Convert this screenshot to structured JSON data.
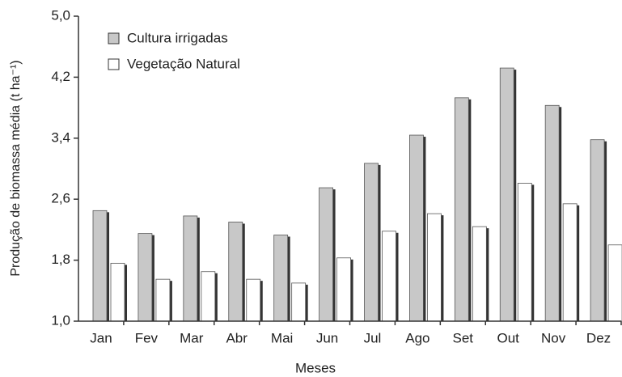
{
  "chart_data": {
    "type": "bar",
    "ylabel": "Produção de biomassa média (t ha⁻¹)",
    "xlabel": "Meses",
    "categories": [
      "Jan",
      "Fev",
      "Mar",
      "Abr",
      "Mai",
      "Jun",
      "Jul",
      "Ago",
      "Set",
      "Out",
      "Nov",
      "Dez"
    ],
    "series": [
      {
        "name": "Cultura irrigadas",
        "color": "#c8c8c8",
        "values": [
          2.45,
          2.15,
          2.38,
          2.3,
          2.13,
          2.75,
          3.07,
          3.44,
          3.93,
          4.32,
          3.83,
          3.38
        ]
      },
      {
        "name": "Vegetação Natural",
        "color": "#ffffff",
        "values": [
          1.76,
          1.55,
          1.65,
          1.55,
          1.5,
          1.83,
          2.18,
          2.41,
          2.24,
          2.81,
          2.54,
          2.0
        ]
      }
    ],
    "ylim": [
      1.0,
      5.0
    ],
    "yticks": [
      {
        "value": 1.0,
        "label": "1,0"
      },
      {
        "value": 1.8,
        "label": "1,8"
      },
      {
        "value": 2.6,
        "label": "2,6"
      },
      {
        "value": 3.4,
        "label": "3,4"
      },
      {
        "value": 4.2,
        "label": "4,2"
      },
      {
        "value": 5.0,
        "label": "5,0"
      }
    ],
    "legend": "top-left"
  }
}
